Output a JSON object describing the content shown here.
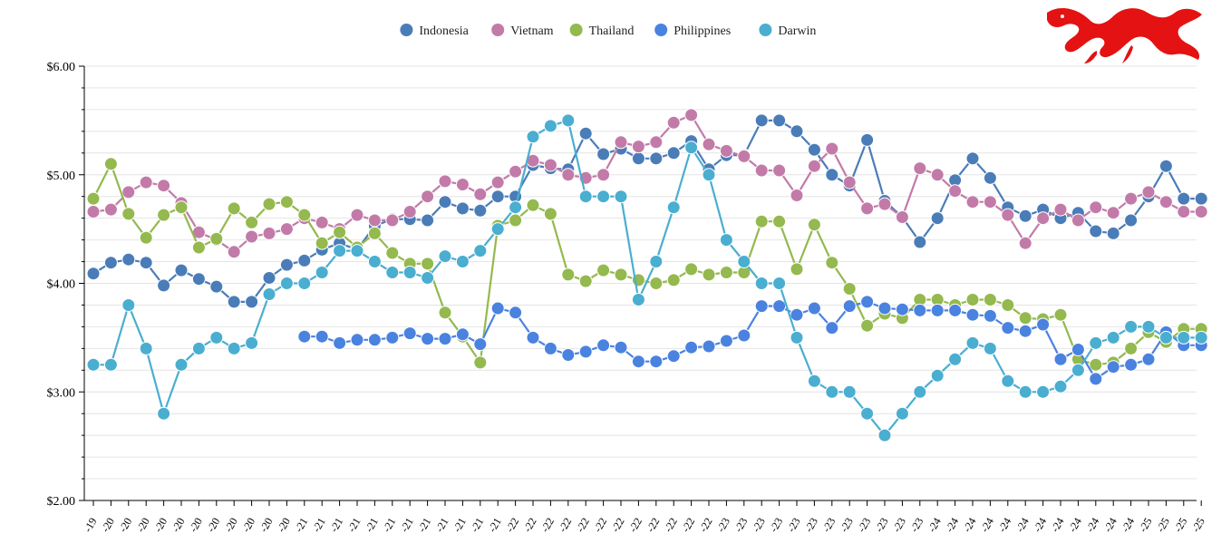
{
  "chart_data": {
    "type": "line",
    "title": "",
    "xlabel": "",
    "ylabel": "",
    "ylim": [
      2,
      6
    ],
    "y_ticks": [
      "$2.00",
      "$3.00",
      "$4.00",
      "$5.00",
      "$6.00"
    ],
    "y_tick_values": [
      2,
      3,
      4,
      5,
      6
    ],
    "grid": true,
    "legend_position": "top-center",
    "categories": [
      "-19",
      "-20",
      "-20",
      "-20",
      "-20",
      "-20",
      "-20",
      "-20",
      "-20",
      "-20",
      "-20",
      "-20",
      "-21",
      "-21",
      "-21",
      "-21",
      "-21",
      "-21",
      "-21",
      "-21",
      "-21",
      "-21",
      "-21",
      "-21",
      "-22",
      "-22",
      "-22",
      "-22",
      "-22",
      "-22",
      "-22",
      "-22",
      "-22",
      "-22",
      "-22",
      "-22",
      "-23",
      "-23",
      "-23",
      "-23",
      "-23",
      "-23",
      "-23",
      "-23",
      "-23",
      "-23",
      "-23",
      "-23",
      "-24",
      "-24",
      "-24",
      "-24",
      "-24",
      "-24",
      "-24",
      "-24",
      "-24",
      "-24",
      "-24",
      "-24",
      "-25",
      "-25",
      "-25",
      "-25"
    ],
    "series": [
      {
        "name": "Indonesia",
        "color": "#4a7cb8",
        "values": [
          4.09,
          4.19,
          4.22,
          4.19,
          3.98,
          4.12,
          4.04,
          3.97,
          3.83,
          3.83,
          4.05,
          4.17,
          4.21,
          4.31,
          4.37,
          4.31,
          4.53,
          4.59,
          4.59,
          4.58,
          4.75,
          4.69,
          4.67,
          4.8,
          4.8,
          5.09,
          5.06,
          5.05,
          5.38,
          5.19,
          5.24,
          5.15,
          5.15,
          5.2,
          5.31,
          5.05,
          5.18,
          5.18,
          5.5,
          5.5,
          5.4,
          5.23,
          5.0,
          4.9,
          5.32,
          4.76,
          4.61,
          4.38,
          4.6,
          4.95,
          5.15,
          4.97,
          4.7,
          4.62,
          4.68,
          4.6,
          4.65,
          4.48,
          4.46,
          4.58,
          4.8,
          5.08,
          4.78,
          4.78
        ]
      },
      {
        "name": "Vietnam",
        "color": "#c27ba8",
        "values": [
          4.66,
          4.68,
          4.84,
          4.93,
          4.9,
          4.74,
          4.47,
          4.4,
          4.29,
          4.43,
          4.46,
          4.5,
          4.6,
          4.56,
          4.5,
          4.63,
          4.58,
          4.58,
          4.66,
          4.8,
          4.94,
          4.91,
          4.82,
          4.93,
          5.03,
          5.13,
          5.09,
          5.0,
          4.97,
          5.0,
          5.3,
          5.26,
          5.3,
          5.48,
          5.55,
          5.28,
          5.22,
          5.17,
          5.04,
          5.04,
          4.81,
          5.08,
          5.24,
          4.93,
          4.69,
          4.73,
          4.61,
          5.06,
          5.0,
          4.85,
          4.75,
          4.75,
          4.63,
          4.37,
          4.6,
          4.68,
          4.58,
          4.7,
          4.65,
          4.78,
          4.84,
          4.75,
          4.66,
          4.66
        ]
      },
      {
        "name": "Thailand",
        "color": "#94b94e",
        "values": [
          4.78,
          5.1,
          4.64,
          4.42,
          4.63,
          4.7,
          4.33,
          4.41,
          4.69,
          4.56,
          4.73,
          4.75,
          4.63,
          4.37,
          4.47,
          4.33,
          4.46,
          4.28,
          4.18,
          4.18,
          3.73,
          3.51,
          3.27,
          4.53,
          4.58,
          4.72,
          4.64,
          4.08,
          4.02,
          4.12,
          4.08,
          4.03,
          4.0,
          4.03,
          4.13,
          4.08,
          4.1,
          4.1,
          4.57,
          4.57,
          4.13,
          4.54,
          4.19,
          3.95,
          3.61,
          3.72,
          3.68,
          3.85,
          3.85,
          3.8,
          3.85,
          3.85,
          3.8,
          3.68,
          3.67,
          3.71,
          3.3,
          3.25,
          3.27,
          3.4,
          3.55,
          3.46,
          3.58,
          3.58
        ]
      },
      {
        "name": "Philippines",
        "color": "#4a82e0",
        "values": [
          null,
          null,
          null,
          null,
          null,
          null,
          null,
          null,
          null,
          null,
          null,
          null,
          3.51,
          3.51,
          3.45,
          3.48,
          3.48,
          3.5,
          3.54,
          3.49,
          3.49,
          3.53,
          3.44,
          3.77,
          3.73,
          3.5,
          3.4,
          3.34,
          3.37,
          3.43,
          3.41,
          3.28,
          3.28,
          3.33,
          3.41,
          3.42,
          3.47,
          3.52,
          3.79,
          3.79,
          3.71,
          3.77,
          3.59,
          3.79,
          3.83,
          3.77,
          3.76,
          3.75,
          3.75,
          3.75,
          3.71,
          3.7,
          3.59,
          3.56,
          3.62,
          3.3,
          3.39,
          3.12,
          3.23,
          3.25,
          3.3,
          3.55,
          3.43,
          3.43
        ]
      },
      {
        "name": "Darwin",
        "color": "#4aaed0",
        "values": [
          3.25,
          3.25,
          3.8,
          3.4,
          2.8,
          3.25,
          3.4,
          3.5,
          3.4,
          3.45,
          3.9,
          4.0,
          4.0,
          4.1,
          4.3,
          4.3,
          4.2,
          4.1,
          4.1,
          4.05,
          4.25,
          4.2,
          4.3,
          4.5,
          4.7,
          5.35,
          5.45,
          5.5,
          4.8,
          4.8,
          4.8,
          3.85,
          4.2,
          4.7,
          5.25,
          5.0,
          4.4,
          4.2,
          4.0,
          4.0,
          3.5,
          3.1,
          3.0,
          3.0,
          2.8,
          2.6,
          2.8,
          3.0,
          3.15,
          3.3,
          3.45,
          3.4,
          3.1,
          3.0,
          3.0,
          3.05,
          3.2,
          3.45,
          3.5,
          3.6,
          3.6,
          3.5,
          3.5,
          3.5
        ]
      }
    ]
  },
  "logo": {
    "name": "dragon-logo",
    "color": "#e41212"
  }
}
